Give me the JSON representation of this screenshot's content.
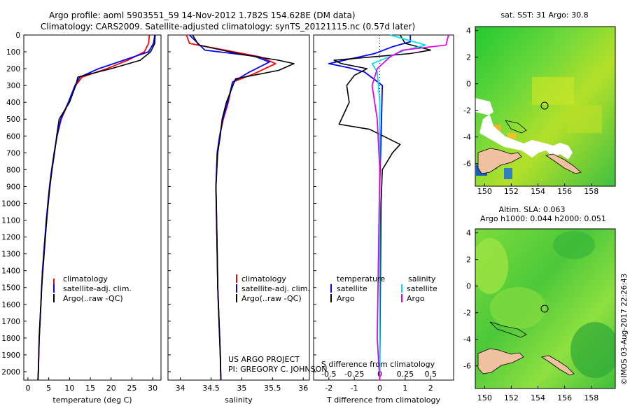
{
  "header": {
    "line1": "Argo profile: aoml 5903551_59 14-Nov-2012 1.782S 154.628E (DM data)",
    "line2": "Climatology: CARS2009. Satellite-adjusted climatology: synTS_20121115.nc (0.57d later)"
  },
  "credits": {
    "project": "US ARGO PROJECT",
    "pi": "PI: GREGORY C. JOHNSON",
    "imos": "©IMOS 03-Aug-2017 22:26:43"
  },
  "colors": {
    "climatology": "#ff0000",
    "satellite": "#0000ff",
    "argo": "#000000",
    "sal_satellite": "#00e5ee",
    "sal_argo": "#ee00ee"
  },
  "chart_data": [
    {
      "type": "line",
      "name": "temperature",
      "xlabel": "temperature (deg C)",
      "ylabel": "",
      "xlim": [
        -1,
        32
      ],
      "ylim": [
        2050,
        0
      ],
      "xticks": [
        0,
        5,
        10,
        15,
        20,
        25,
        30
      ],
      "yticks": [
        0,
        100,
        200,
        300,
        400,
        500,
        600,
        700,
        800,
        900,
        1000,
        1100,
        1200,
        1300,
        1400,
        1500,
        1600,
        1700,
        1800,
        1900,
        2000
      ],
      "legend": [
        "climatology",
        "satellite-adj. clim.",
        "Argo(..raw -QC)"
      ],
      "series": [
        {
          "name": "climatology",
          "color": "#ff0000",
          "points": [
            [
              29.2,
              0
            ],
            [
              29.0,
              50
            ],
            [
              28.0,
              100
            ],
            [
              24,
              150
            ],
            [
              19,
              200
            ],
            [
              13,
              250
            ],
            [
              11.5,
              300
            ],
            [
              9.8,
              400
            ],
            [
              8.0,
              500
            ],
            [
              7.0,
              600
            ],
            [
              6.3,
              700
            ],
            [
              5.7,
              800
            ],
            [
              5.2,
              900
            ],
            [
              4.8,
              1000
            ],
            [
              4.5,
              1100
            ],
            [
              4.1,
              1200
            ],
            [
              3.8,
              1300
            ],
            [
              3.5,
              1400
            ],
            [
              3.3,
              1500
            ],
            [
              3.1,
              1600
            ],
            [
              2.9,
              1700
            ],
            [
              2.7,
              1800
            ],
            [
              2.6,
              1900
            ],
            [
              2.5,
              2000
            ],
            [
              2.4,
              2050
            ]
          ]
        },
        {
          "name": "satellite-adj. clim.",
          "color": "#0000ff",
          "points": [
            [
              30.5,
              0
            ],
            [
              30.2,
              50
            ],
            [
              29.0,
              100
            ],
            [
              23,
              150
            ],
            [
              17,
              200
            ],
            [
              12.5,
              250
            ],
            [
              11.3,
              300
            ],
            [
              9.7,
              400
            ],
            [
              7.9,
              500
            ],
            [
              7.0,
              600
            ],
            [
              6.3,
              700
            ],
            [
              5.7,
              800
            ],
            [
              5.2,
              900
            ],
            [
              4.8,
              1000
            ],
            [
              4.4,
              1100
            ],
            [
              4.1,
              1200
            ],
            [
              3.8,
              1300
            ],
            [
              3.5,
              1400
            ],
            [
              3.3,
              1500
            ],
            [
              3.1,
              1600
            ],
            [
              2.9,
              1700
            ],
            [
              2.7,
              1800
            ],
            [
              2.6,
              1900
            ],
            [
              2.5,
              2000
            ],
            [
              2.4,
              2050
            ]
          ]
        },
        {
          "name": "Argo(..raw -QC)",
          "color": "#000000",
          "points": [
            [
              30.6,
              0
            ],
            [
              30.5,
              50
            ],
            [
              29.5,
              100
            ],
            [
              27,
              150
            ],
            [
              20,
              200
            ],
            [
              12,
              250
            ],
            [
              11.5,
              300
            ],
            [
              10,
              400
            ],
            [
              7.5,
              500
            ],
            [
              6.9,
              600
            ],
            [
              6.4,
              700
            ],
            [
              5.8,
              800
            ],
            [
              5.3,
              900
            ],
            [
              4.9,
              1000
            ],
            [
              4.5,
              1100
            ],
            [
              4.2,
              1200
            ],
            [
              3.9,
              1300
            ],
            [
              3.6,
              1400
            ],
            [
              3.3,
              1500
            ],
            [
              3.1,
              1600
            ],
            [
              2.9,
              1700
            ],
            [
              2.7,
              1800
            ],
            [
              2.6,
              1900
            ],
            [
              2.5,
              2000
            ],
            [
              2.4,
              2050
            ]
          ]
        }
      ]
    },
    {
      "type": "line",
      "name": "salinity",
      "xlabel": "salinity",
      "xlim": [
        33.8,
        36.1
      ],
      "ylim": [
        2050,
        0
      ],
      "xticks": [
        34,
        34.5,
        35,
        35.5,
        36
      ],
      "legend": [
        "climatology",
        "satellite-adj. clim.",
        "Argo(..raw -QC)"
      ],
      "series": [
        {
          "name": "climatology",
          "color": "#ff0000",
          "points": [
            [
              34.1,
              0
            ],
            [
              34.15,
              50
            ],
            [
              35.3,
              130
            ],
            [
              35.55,
              170
            ],
            [
              35.2,
              230
            ],
            [
              34.85,
              280
            ],
            [
              34.78,
              400
            ],
            [
              34.7,
              500
            ],
            [
              34.64,
              600
            ],
            [
              34.6,
              700
            ],
            [
              34.58,
              900
            ],
            [
              34.59,
              1100
            ],
            [
              34.6,
              1300
            ],
            [
              34.61,
              1500
            ],
            [
              34.63,
              1700
            ],
            [
              34.65,
              1900
            ],
            [
              34.66,
              2050
            ]
          ]
        },
        {
          "name": "satellite-adj. clim.",
          "color": "#0000ff",
          "points": [
            [
              34.15,
              0
            ],
            [
              34.4,
              90
            ],
            [
              35.2,
              125
            ],
            [
              35.45,
              160
            ],
            [
              35.1,
              225
            ],
            [
              34.85,
              280
            ],
            [
              34.77,
              400
            ],
            [
              34.69,
              500
            ],
            [
              34.64,
              600
            ],
            [
              34.6,
              700
            ],
            [
              34.58,
              900
            ],
            [
              34.59,
              1100
            ],
            [
              34.6,
              1300
            ],
            [
              34.61,
              1500
            ],
            [
              34.63,
              1700
            ],
            [
              34.65,
              1900
            ],
            [
              34.66,
              2050
            ]
          ]
        },
        {
          "name": "Argo(..raw -QC)",
          "color": "#000000",
          "points": [
            [
              34.2,
              0
            ],
            [
              34.3,
              60
            ],
            [
              35.0,
              115
            ],
            [
              35.6,
              150
            ],
            [
              35.85,
              170
            ],
            [
              35.6,
              210
            ],
            [
              34.9,
              260
            ],
            [
              34.75,
              400
            ],
            [
              34.68,
              500
            ],
            [
              34.65,
              600
            ],
            [
              34.61,
              700
            ],
            [
              34.58,
              900
            ],
            [
              34.59,
              1100
            ],
            [
              34.6,
              1300
            ],
            [
              34.61,
              1500
            ],
            [
              34.63,
              1700
            ],
            [
              34.65,
              1900
            ],
            [
              34.66,
              2050
            ]
          ]
        }
      ]
    },
    {
      "type": "line",
      "name": "differences",
      "xlabel": "T difference from climatology",
      "xlabel_top": "S difference from climatology",
      "xlim": [
        -2.6,
        2.9
      ],
      "ylim": [
        2050,
        0
      ],
      "xticks": [
        -2,
        -1,
        0,
        1,
        2
      ],
      "s_ticks": [
        -0.5,
        -0.25,
        0,
        0.25,
        0.5
      ],
      "s_tick_labels": [
        "-0.5",
        "-0.25",
        "0",
        "0.25",
        "0.5"
      ],
      "legend_titles": [
        "temperature",
        "salinity"
      ],
      "legend": [
        "satellite",
        "Argo",
        "satellite",
        "Argo"
      ],
      "series": [
        {
          "name": "temperature satellite",
          "color": "#0000ff",
          "points": [
            [
              1.2,
              0
            ],
            [
              1.2,
              40
            ],
            [
              0.5,
              70
            ],
            [
              -0.2,
              110
            ],
            [
              -2.0,
              170
            ],
            [
              -1.2,
              195
            ],
            [
              -0.6,
              220
            ],
            [
              0.1,
              300
            ],
            [
              0.05,
              600
            ],
            [
              0,
              900
            ],
            [
              0,
              2050
            ]
          ]
        },
        {
          "name": "temperature Argo",
          "color": "#000000",
          "points": [
            [
              0.8,
              0
            ],
            [
              1.0,
              50
            ],
            [
              2.0,
              90
            ],
            [
              1.2,
              110
            ],
            [
              -0.3,
              130
            ],
            [
              -1.8,
              150
            ],
            [
              -1.5,
              170
            ],
            [
              -0.5,
              200
            ],
            [
              -1.0,
              240
            ],
            [
              -1.3,
              300
            ],
            [
              -1.2,
              400
            ],
            [
              -1.6,
              530
            ],
            [
              -0.4,
              560
            ],
            [
              0.8,
              650
            ],
            [
              0.5,
              700
            ],
            [
              0.1,
              800
            ],
            [
              0.05,
              1000
            ],
            [
              0,
              2050
            ]
          ]
        },
        {
          "name": "salinity satellite",
          "color": "#00e5ee",
          "points": [
            [
              0.4,
              0
            ],
            [
              1.8,
              60
            ],
            [
              1.0,
              90
            ],
            [
              0.2,
              140
            ],
            [
              -0.3,
              170
            ],
            [
              -0.1,
              220
            ],
            [
              0,
              400
            ],
            [
              0,
              2050
            ]
          ]
        },
        {
          "name": "salinity Argo",
          "color": "#ee00ee",
          "points": [
            [
              2.7,
              0
            ],
            [
              2.6,
              60
            ],
            [
              0.9,
              90
            ],
            [
              0.4,
              130
            ],
            [
              -0.1,
              200
            ],
            [
              -0.3,
              300
            ],
            [
              -0.1,
              500
            ],
            [
              0.0,
              800
            ],
            [
              -0.1,
              1800
            ],
            [
              0,
              2050
            ]
          ]
        }
      ]
    },
    {
      "type": "heatmap",
      "name": "sst_map",
      "title": "sat. SST: 31 Argo: 30.8",
      "xlim": [
        149.3,
        159.8
      ],
      "ylim": [
        -7.7,
        4.3
      ],
      "xticks": [
        150,
        152,
        154,
        156,
        158
      ],
      "yticks": [
        4,
        2,
        0,
        -2,
        -4,
        -6
      ],
      "marker": [
        154.628,
        -1.782
      ]
    },
    {
      "type": "heatmap",
      "name": "sla_map",
      "title": "Altim. SLA: 0.063",
      "subtitle": "Argo h1000: 0.044 h2000: 0.051",
      "xlim": [
        149.3,
        159.8
      ],
      "ylim": [
        -7.7,
        4.3
      ],
      "xticks": [
        150,
        152,
        154,
        156,
        158
      ],
      "yticks": [
        4,
        2,
        0,
        -2,
        -4,
        -6
      ],
      "marker": [
        154.628,
        -1.782
      ]
    }
  ]
}
